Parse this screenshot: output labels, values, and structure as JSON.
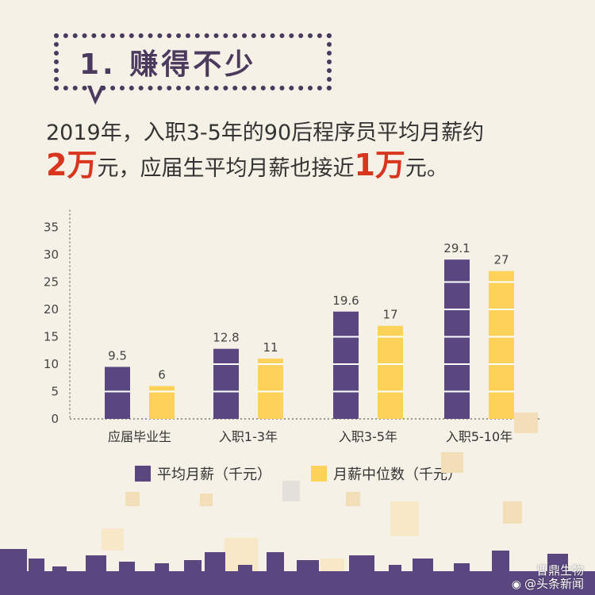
{
  "title": "1. 赚得不少",
  "headline": {
    "line1": "2019年，入职3-5年的90后程序员平均月薪约",
    "line2_big1": "2万",
    "line2_mid": "元，应届生平均月薪也接近",
    "line2_big2": "1万",
    "line2_end": "元。"
  },
  "chart_data": {
    "type": "bar",
    "categories": [
      "应届毕业生",
      "入职1-3年",
      "入职3-5年",
      "入职5-10年"
    ],
    "series": [
      {
        "name": "平均月薪（千元）",
        "values": [
          9.5,
          12.8,
          19.6,
          29.1
        ],
        "labels": [
          "9.5",
          "12.8",
          "19.6",
          "29.1"
        ],
        "color": "#5a4780"
      },
      {
        "name": "月薪中位数（千元）",
        "values": [
          6,
          11,
          17,
          27
        ],
        "labels": [
          "6",
          "11",
          "17",
          "27"
        ],
        "color": "#fcd25a"
      }
    ],
    "ylim": [
      0,
      35
    ],
    "yticks": [
      0,
      5,
      10,
      15,
      20,
      25,
      30,
      35
    ],
    "legend_position": "bottom"
  },
  "watermark": {
    "line1": "曹鼎生物",
    "line2": "@头条新闻"
  },
  "colors": {
    "purple": "#5a4780",
    "yellow": "#fcd25a",
    "accent_red": "#d9361f",
    "background": "#f5f1e6"
  }
}
